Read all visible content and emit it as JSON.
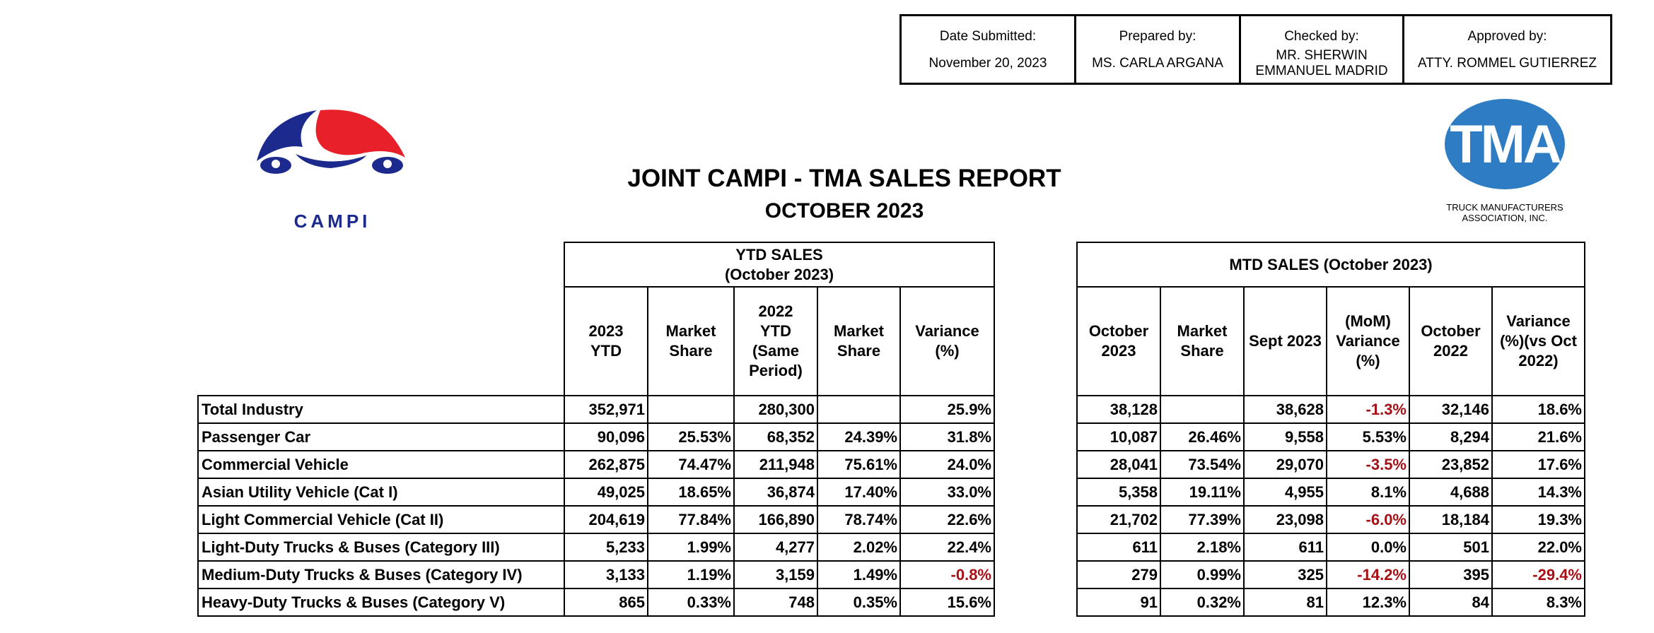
{
  "signoff": [
    {
      "label": "Date Submitted:",
      "value": "November 20, 2023"
    },
    {
      "label": "Prepared by:",
      "value": "MS. CARLA ARGANA"
    },
    {
      "label": "Checked by:",
      "value": "MR. SHERWIN EMMANUEL MADRID"
    },
    {
      "label": "Approved by:",
      "value": "ATTY. ROMMEL GUTIERREZ"
    }
  ],
  "logos": {
    "campi": "CAMPI",
    "tma": "TMA",
    "tma_sub1": "TRUCK MANUFACTURERS",
    "tma_sub2": "ASSOCIATION, INC."
  },
  "title": "JOINT CAMPI - TMA SALES REPORT",
  "subtitle": "OCTOBER 2023",
  "colors": {
    "negative": "#a50f15",
    "tma_blue": "#2e7cc4",
    "campi_red": "#e8202a",
    "campi_blue": "#1b2a8c"
  },
  "ytd": {
    "title1": "YTD SALES",
    "title2": "(October 2023)",
    "columns": [
      [
        "2023",
        "YTD"
      ],
      [
        "Market",
        "Share"
      ],
      [
        "2022",
        "YTD",
        "(Same",
        "Period)"
      ],
      [
        "Market",
        "Share"
      ],
      [
        "Variance",
        "(%)"
      ]
    ]
  },
  "mtd": {
    "title": "MTD SALES (October 2023)",
    "columns": [
      [
        "October",
        "2023"
      ],
      [
        "Market",
        "Share"
      ],
      [
        "Sept 2023"
      ],
      [
        "(MoM)",
        "Variance",
        "(%)"
      ],
      [
        "October",
        "2022"
      ],
      [
        "Variance",
        "(%)(vs Oct",
        "2022)"
      ]
    ]
  },
  "rows": [
    {
      "label": "Total Industry",
      "ytd": [
        "352,971",
        "",
        "280,300",
        "",
        "25.9%"
      ],
      "mtd": [
        "38,128",
        "",
        "38,628",
        "-1.3%",
        "32,146",
        "18.6%"
      ]
    },
    {
      "label": "Passenger Car",
      "ytd": [
        "90,096",
        "25.53%",
        "68,352",
        "24.39%",
        "31.8%"
      ],
      "mtd": [
        "10,087",
        "26.46%",
        "9,558",
        "5.53%",
        "8,294",
        "21.6%"
      ]
    },
    {
      "label": "Commercial Vehicle",
      "ytd": [
        "262,875",
        "74.47%",
        "211,948",
        "75.61%",
        "24.0%"
      ],
      "mtd": [
        "28,041",
        "73.54%",
        "29,070",
        "-3.5%",
        "23,852",
        "17.6%"
      ]
    },
    {
      "label": "Asian Utility Vehicle (Cat I)",
      "ytd": [
        "49,025",
        "18.65%",
        "36,874",
        "17.40%",
        "33.0%"
      ],
      "mtd": [
        "5,358",
        "19.11%",
        "4,955",
        "8.1%",
        "4,688",
        "14.3%"
      ]
    },
    {
      "label": "Light Commercial Vehicle (Cat II)",
      "ytd": [
        "204,619",
        "77.84%",
        "166,890",
        "78.74%",
        "22.6%"
      ],
      "mtd": [
        "21,702",
        "77.39%",
        "23,098",
        "-6.0%",
        "18,184",
        "19.3%"
      ]
    },
    {
      "label": "Light-Duty Trucks & Buses (Category III)",
      "ytd": [
        "5,233",
        "1.99%",
        "4,277",
        "2.02%",
        "22.4%"
      ],
      "mtd": [
        "611",
        "2.18%",
        "611",
        "0.0%",
        "501",
        "22.0%"
      ]
    },
    {
      "label": "Medium-Duty Trucks & Buses (Category IV)",
      "ytd": [
        "3,133",
        "1.19%",
        "3,159",
        "1.49%",
        "-0.8%"
      ],
      "mtd": [
        "279",
        "0.99%",
        "325",
        "-14.2%",
        "395",
        "-29.4%"
      ]
    },
    {
      "label": "Heavy-Duty Trucks & Buses (Category V)",
      "ytd": [
        "865",
        "0.33%",
        "748",
        "0.35%",
        "15.6%"
      ],
      "mtd": [
        "91",
        "0.32%",
        "81",
        "12.3%",
        "84",
        "8.3%"
      ]
    }
  ]
}
